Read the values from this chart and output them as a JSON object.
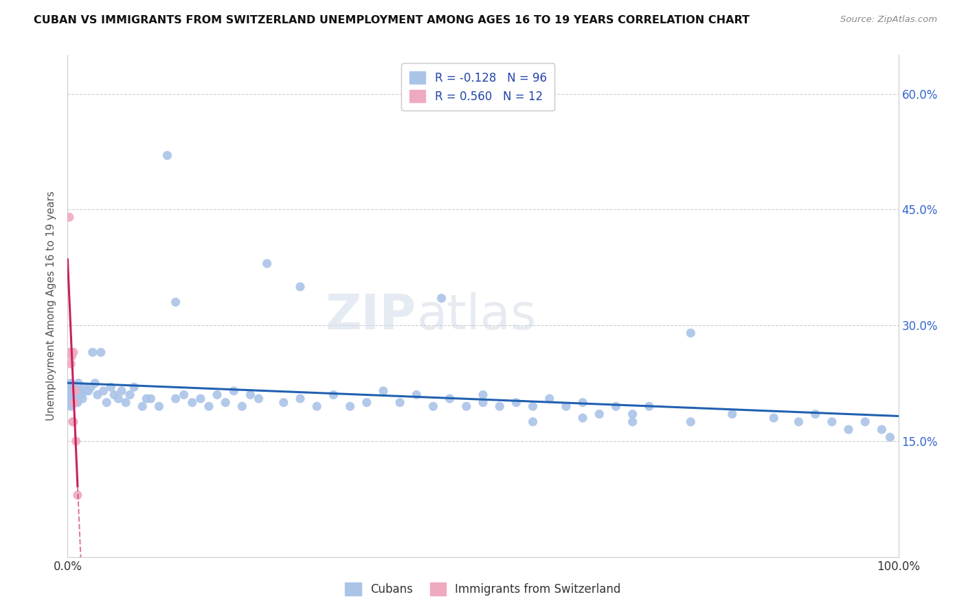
{
  "title": "CUBAN VS IMMIGRANTS FROM SWITZERLAND UNEMPLOYMENT AMONG AGES 16 TO 19 YEARS CORRELATION CHART",
  "source": "Source: ZipAtlas.com",
  "ylabel": "Unemployment Among Ages 16 to 19 years",
  "xlim": [
    0.0,
    1.0
  ],
  "ylim": [
    0.0,
    0.65
  ],
  "yticks": [
    0.0,
    0.15,
    0.3,
    0.45,
    0.6
  ],
  "r_cubans": -0.128,
  "n_cubans": 96,
  "r_swiss": 0.56,
  "n_swiss": 12,
  "color_cubans": "#aac4e8",
  "color_swiss": "#f0aac0",
  "line_color_cubans": "#2060b0",
  "line_color_swiss": "#c82060",
  "cubans_x": [
    0.001,
    0.002,
    0.002,
    0.003,
    0.003,
    0.004,
    0.004,
    0.005,
    0.005,
    0.006,
    0.006,
    0.007,
    0.008,
    0.009,
    0.01,
    0.011,
    0.012,
    0.013,
    0.015,
    0.016,
    0.018,
    0.02,
    0.022,
    0.025,
    0.028,
    0.03,
    0.033,
    0.036,
    0.04,
    0.043,
    0.047,
    0.052,
    0.056,
    0.061,
    0.065,
    0.07,
    0.075,
    0.08,
    0.09,
    0.095,
    0.1,
    0.11,
    0.12,
    0.13,
    0.14,
    0.15,
    0.16,
    0.17,
    0.18,
    0.19,
    0.2,
    0.21,
    0.22,
    0.23,
    0.24,
    0.26,
    0.28,
    0.3,
    0.32,
    0.34,
    0.36,
    0.38,
    0.4,
    0.42,
    0.44,
    0.46,
    0.48,
    0.5,
    0.52,
    0.54,
    0.56,
    0.58,
    0.6,
    0.62,
    0.64,
    0.66,
    0.68,
    0.7,
    0.75,
    0.8,
    0.85,
    0.88,
    0.9,
    0.92,
    0.94,
    0.96,
    0.98,
    0.99,
    0.13,
    0.28,
    0.45,
    0.5,
    0.56,
    0.62,
    0.68,
    0.75
  ],
  "cubans_y": [
    0.21,
    0.215,
    0.22,
    0.2,
    0.205,
    0.195,
    0.225,
    0.21,
    0.215,
    0.2,
    0.205,
    0.22,
    0.215,
    0.21,
    0.2,
    0.215,
    0.2,
    0.225,
    0.215,
    0.21,
    0.205,
    0.22,
    0.215,
    0.215,
    0.22,
    0.265,
    0.225,
    0.21,
    0.265,
    0.215,
    0.2,
    0.22,
    0.21,
    0.205,
    0.215,
    0.2,
    0.21,
    0.22,
    0.195,
    0.205,
    0.205,
    0.195,
    0.52,
    0.205,
    0.21,
    0.2,
    0.205,
    0.195,
    0.21,
    0.2,
    0.215,
    0.195,
    0.21,
    0.205,
    0.38,
    0.2,
    0.205,
    0.195,
    0.21,
    0.195,
    0.2,
    0.215,
    0.2,
    0.21,
    0.195,
    0.205,
    0.195,
    0.21,
    0.195,
    0.2,
    0.195,
    0.205,
    0.195,
    0.2,
    0.185,
    0.195,
    0.185,
    0.195,
    0.175,
    0.185,
    0.18,
    0.175,
    0.185,
    0.175,
    0.165,
    0.175,
    0.165,
    0.155,
    0.33,
    0.35,
    0.335,
    0.2,
    0.175,
    0.18,
    0.175,
    0.29
  ],
  "swiss_x": [
    0.002,
    0.003,
    0.004,
    0.004,
    0.005,
    0.006,
    0.007,
    0.007,
    0.008,
    0.009,
    0.01,
    0.012
  ],
  "swiss_y": [
    0.44,
    0.265,
    0.265,
    0.25,
    0.26,
    0.175,
    0.175,
    0.265,
    0.2,
    0.215,
    0.15,
    0.08
  ]
}
